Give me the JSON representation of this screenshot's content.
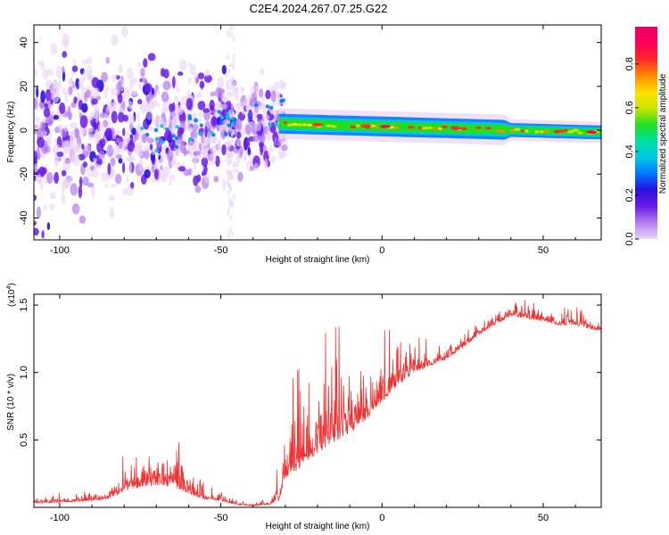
{
  "title": "C2E4.2024.267.07.25.G22",
  "chart_data": [
    {
      "type": "heatmap",
      "title": "C2E4.2024.267.07.25.G22",
      "xlabel": "Height of straight line (km)",
      "ylabel": "Frequency (Hz)",
      "xlim": [
        -108,
        68
      ],
      "ylim": [
        -50,
        48
      ],
      "xticks": [
        -100,
        -50,
        0,
        50
      ],
      "yticks": [
        -40,
        -20,
        0,
        20,
        40
      ],
      "colorbar": {
        "label": "Normalized spectral amplitude",
        "range": [
          0.0,
          0.97
        ],
        "ticks": [
          0.0,
          0.2,
          0.4,
          0.6,
          0.8
        ],
        "colors": [
          "#ebd4f5",
          "#b47cf0",
          "#6a1de6",
          "#2a10e0",
          "#0077ff",
          "#00c8e6",
          "#00e0a0",
          "#22dd22",
          "#c8e600",
          "#ffe000",
          "#ff8a00",
          "#ff2a2a",
          "#ff0055",
          "#e8006a"
        ]
      },
      "description_series": [
        {
          "name": "noisy region",
          "x_range": [
            -108,
            -30
          ],
          "spread_hz": [
            -45,
            40
          ]
        },
        {
          "name": "stable tone",
          "x_range": [
            -32,
            68
          ],
          "center_hz": [
            3,
            -1
          ]
        }
      ]
    },
    {
      "type": "line",
      "xlabel": "Height of straight line (km)",
      "ylabel": "SNR (10 * v/v)",
      "yscale_label": "(x10",
      "yscale_exp": "4",
      "yscale_close": ")",
      "xlim": [
        -108,
        68
      ],
      "ylim": [
        0.0,
        1.58
      ],
      "xticks": [
        -100,
        -50,
        0,
        50
      ],
      "yticks": [
        0.5,
        1.0,
        1.5
      ],
      "ytick_labels": [
        "0.5",
        "1.0",
        "1.5"
      ],
      "color": "#ee3333",
      "envelope": {
        "x": [
          -108,
          -95,
          -85,
          -80,
          -75,
          -70,
          -65,
          -60,
          -55,
          -50,
          -45,
          -40,
          -35,
          -32,
          -30,
          -25,
          -20,
          -15,
          -10,
          -5,
          0,
          5,
          10,
          15,
          20,
          25,
          30,
          35,
          40,
          45,
          50,
          55,
          60,
          65,
          68
        ],
        "base": [
          0.03,
          0.04,
          0.06,
          0.12,
          0.15,
          0.16,
          0.15,
          0.1,
          0.06,
          0.05,
          0.02,
          0.01,
          0.02,
          0.05,
          0.2,
          0.3,
          0.4,
          0.48,
          0.55,
          0.65,
          0.78,
          0.9,
          1.0,
          1.05,
          1.1,
          1.18,
          1.28,
          1.35,
          1.42,
          1.4,
          1.38,
          1.35,
          1.35,
          1.32,
          1.3
        ],
        "amp": [
          0.04,
          0.05,
          0.1,
          0.25,
          0.3,
          0.3,
          0.28,
          0.18,
          0.08,
          0.05,
          0.04,
          0.02,
          0.03,
          0.15,
          0.35,
          0.4,
          0.45,
          0.45,
          0.42,
          0.35,
          0.28,
          0.22,
          0.18,
          0.14,
          0.1,
          0.1,
          0.08,
          0.08,
          0.1,
          0.12,
          0.1,
          0.1,
          0.1,
          0.1,
          0.1
        ]
      }
    }
  ]
}
